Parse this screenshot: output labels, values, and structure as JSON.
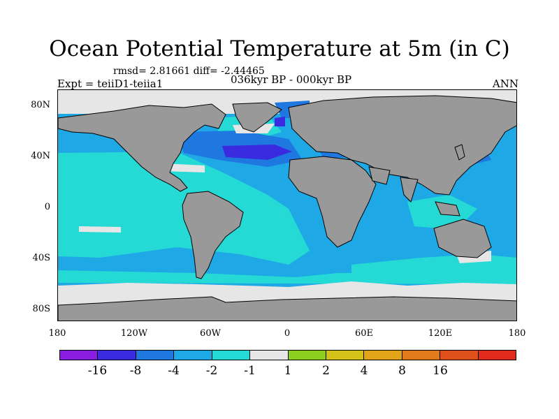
{
  "title": "Ocean Potential Temperature at 5m (in C)",
  "stats": "rmsd= 2.81661 diff= -2.44465",
  "experiment": "Expt = teiiD1-teiia1",
  "period": "036kyr BP - 000kyr BP",
  "season": "ANN",
  "y_axis_labels": [
    "80N",
    "40N",
    "0",
    "40S",
    "80S"
  ],
  "x_axis_labels": [
    "180",
    "120W",
    "60W",
    "0",
    "60E",
    "120E",
    "180"
  ],
  "colorbar": {
    "colors": [
      "#8a1ee0",
      "#3a2ae0",
      "#1e78e0",
      "#1ea9e6",
      "#25d9d5",
      "#e6e6e6",
      "#e6e6e6",
      "#8ccf1e",
      "#d4c21a",
      "#e2a51a",
      "#e07a1a",
      "#e0501a",
      "#e02a1a"
    ],
    "labels": [
      "-16",
      "-8",
      "-4",
      "-2",
      "-1",
      "1",
      "2",
      "4",
      "8",
      "16"
    ]
  },
  "land_color": "#999999",
  "missing_color": "#e6e6e6"
}
